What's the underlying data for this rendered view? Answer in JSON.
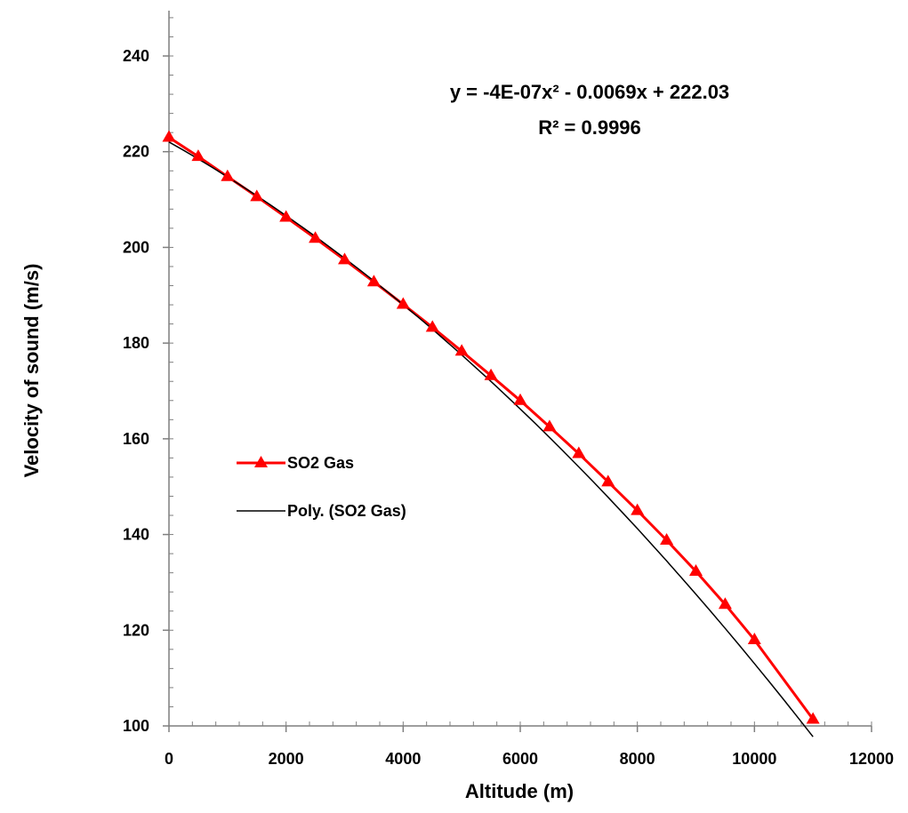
{
  "chart_data": {
    "type": "line",
    "xlabel": "Altitude (m)",
    "ylabel": "Velocity of sound (m/s)",
    "xlim": [
      0,
      12000
    ],
    "ylim": [
      100,
      250
    ],
    "x_ticks": [
      0,
      2000,
      4000,
      6000,
      8000,
      10000,
      12000
    ],
    "y_ticks": [
      100,
      120,
      140,
      160,
      180,
      200,
      220,
      240
    ],
    "grid": false,
    "legend_placement": "center-left",
    "series": [
      {
        "name": "SO2 Gas",
        "color": "#ff0000",
        "marker": "triangle",
        "x": [
          0,
          500,
          1000,
          1500,
          2000,
          2500,
          3000,
          3500,
          4000,
          4500,
          5000,
          5500,
          6000,
          6500,
          7000,
          7500,
          8000,
          8500,
          9000,
          9500,
          10000,
          11000
        ],
        "values": [
          223,
          219,
          214.8,
          210.6,
          206.3,
          201.9,
          197.4,
          192.8,
          188.1,
          183.3,
          178.3,
          173.2,
          168,
          162.5,
          156.9,
          151,
          145,
          138.8,
          132.3,
          125.4,
          118,
          101.4
        ]
      },
      {
        "name": "Poly. (SO2 Gas)",
        "color": "#000000",
        "type": "trendline",
        "equation": {
          "a": -4e-07,
          "b": -0.0069,
          "c": 222.03
        },
        "x_range": [
          0,
          11000
        ]
      }
    ],
    "annotation": {
      "equation_text": "y = -4E-07x² - 0.0069x + 222.03",
      "r2_text": "R² = 0.9996"
    }
  }
}
